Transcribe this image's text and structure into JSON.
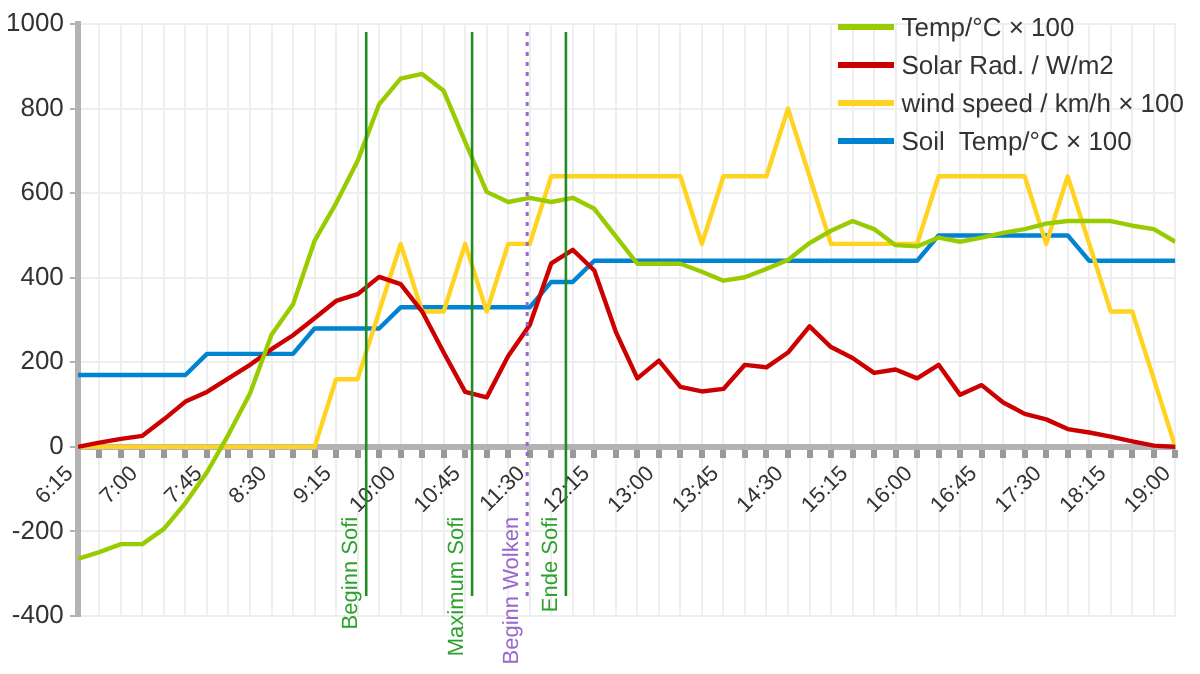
{
  "chart_data": {
    "type": "line",
    "x": [
      6.25,
      6.5,
      6.75,
      7,
      7.25,
      7.5,
      7.75,
      8,
      8.25,
      8.5,
      8.75,
      9,
      9.25,
      9.5,
      9.75,
      10,
      10.25,
      10.5,
      10.75,
      11,
      11.25,
      11.5,
      11.75,
      12,
      12.25,
      12.5,
      12.75,
      13,
      13.25,
      13.5,
      13.75,
      14,
      14.25,
      14.5,
      14.75,
      15,
      15.25,
      15.5,
      15.75,
      16,
      16.25,
      16.5,
      16.75,
      17,
      17.25,
      17.5,
      17.75,
      18,
      18.25,
      18.5,
      18.75,
      19
    ],
    "series": [
      {
        "name": "Temp/°C × 100",
        "color": "#99cc00",
        "values": [
          -265,
          -249,
          -230,
          -230,
          -194,
          -133,
          -60,
          29,
          126,
          265,
          337,
          487,
          576,
          676,
          810,
          871,
          882,
          842,
          721,
          603,
          579,
          589,
          579,
          589,
          563,
          498,
          433,
          433,
          433,
          414,
          393,
          401,
          421,
          442,
          482,
          511,
          534,
          515,
          477,
          474,
          495,
          485,
          495,
          506,
          515,
          528,
          534,
          534,
          534,
          523,
          515,
          485
        ]
      },
      {
        "name": "Solar Rad. / W/m2",
        "color": "#cc0000",
        "values": [
          0,
          10,
          19,
          26,
          65,
          107,
          130,
          162,
          194,
          231,
          264,
          304,
          345,
          361,
          402,
          385,
          320,
          223,
          130,
          117,
          215,
          288,
          434,
          466,
          417,
          272,
          162,
          204,
          142,
          131,
          137,
          194,
          188,
          223,
          285,
          236,
          210,
          175,
          183,
          162,
          194,
          123,
          146,
          105,
          78,
          65,
          42,
          34,
          24,
          13,
          3,
          0
        ]
      },
      {
        "name": "wind speed / km/h × 100",
        "color": "#ffd320",
        "values": [
          0,
          0,
          0,
          0,
          0,
          0,
          0,
          0,
          0,
          0,
          0,
          0,
          160,
          160,
          320,
          480,
          320,
          320,
          480,
          320,
          480,
          480,
          640,
          640,
          640,
          640,
          640,
          640,
          640,
          480,
          640,
          640,
          640,
          800,
          640,
          480,
          480,
          480,
          480,
          480,
          640,
          640,
          640,
          640,
          640,
          480,
          640,
          480,
          320,
          320,
          160,
          0
        ]
      },
      {
        "name": "Soil  Temp/°C × 100",
        "color": "#0084d1",
        "values": [
          170,
          170,
          170,
          170,
          170,
          170,
          220,
          220,
          220,
          220,
          220,
          280,
          280,
          280,
          280,
          330,
          330,
          330,
          330,
          330,
          330,
          330,
          390,
          390,
          440,
          440,
          440,
          440,
          440,
          440,
          440,
          440,
          440,
          440,
          440,
          440,
          440,
          440,
          440,
          440,
          500,
          500,
          500,
          500,
          500,
          500,
          500,
          440,
          440,
          440,
          440,
          440
        ]
      }
    ],
    "xlim": [
      6.25,
      19
    ],
    "xticks": [
      {
        "value": 6.25,
        "label": "6:15"
      },
      {
        "value": 6.5,
        "label": null
      },
      {
        "value": 6.75,
        "label": null
      },
      {
        "value": 7,
        "label": "7:00"
      },
      {
        "value": 7.25,
        "label": null
      },
      {
        "value": 7.5,
        "label": null
      },
      {
        "value": 7.75,
        "label": "7:45"
      },
      {
        "value": 8,
        "label": null
      },
      {
        "value": 8.25,
        "label": null
      },
      {
        "value": 8.5,
        "label": "8:30"
      },
      {
        "value": 8.75,
        "label": null
      },
      {
        "value": 9,
        "label": null
      },
      {
        "value": 9.25,
        "label": "9:15"
      },
      {
        "value": 9.5,
        "label": null
      },
      {
        "value": 9.75,
        "label": null
      },
      {
        "value": 10,
        "label": "10:00"
      },
      {
        "value": 10.25,
        "label": null
      },
      {
        "value": 10.5,
        "label": null
      },
      {
        "value": 10.75,
        "label": "10:45"
      },
      {
        "value": 11,
        "label": null
      },
      {
        "value": 11.25,
        "label": null
      },
      {
        "value": 11.5,
        "label": "11:30"
      },
      {
        "value": 11.75,
        "label": null
      },
      {
        "value": 12,
        "label": null
      },
      {
        "value": 12.25,
        "label": "12:15"
      },
      {
        "value": 12.5,
        "label": null
      },
      {
        "value": 12.75,
        "label": null
      },
      {
        "value": 13,
        "label": "13:00"
      },
      {
        "value": 13.25,
        "label": null
      },
      {
        "value": 13.5,
        "label": null
      },
      {
        "value": 13.75,
        "label": "13:45"
      },
      {
        "value": 14,
        "label": null
      },
      {
        "value": 14.25,
        "label": null
      },
      {
        "value": 14.5,
        "label": "14:30"
      },
      {
        "value": 14.75,
        "label": null
      },
      {
        "value": 15,
        "label": null
      },
      {
        "value": 15.25,
        "label": "15:15"
      },
      {
        "value": 15.5,
        "label": null
      },
      {
        "value": 15.75,
        "label": null
      },
      {
        "value": 16,
        "label": "16:00"
      },
      {
        "value": 16.25,
        "label": null
      },
      {
        "value": 16.5,
        "label": null
      },
      {
        "value": 16.75,
        "label": "16:45"
      },
      {
        "value": 17,
        "label": null
      },
      {
        "value": 17.25,
        "label": null
      },
      {
        "value": 17.5,
        "label": "17:30"
      },
      {
        "value": 17.75,
        "label": null
      },
      {
        "value": 18,
        "label": null
      },
      {
        "value": 18.25,
        "label": "18:15"
      },
      {
        "value": 18.5,
        "label": null
      },
      {
        "value": 18.75,
        "label": null
      },
      {
        "value": 19,
        "label": "19:00"
      }
    ],
    "ylim": [
      -400,
      1000
    ],
    "yticks": [
      -400,
      -200,
      0,
      200,
      400,
      600,
      800,
      1000
    ],
    "grid": true,
    "legend": "top right",
    "marker": "none",
    "line_style": "solid",
    "ref_lines": [
      {
        "axis": "x",
        "value": 9.6,
        "label": "Beginn Sofi",
        "color": "#228b22"
      },
      {
        "axis": "x",
        "value": 10.83,
        "label": "Maximum Sofi",
        "color": "#228b22"
      },
      {
        "axis": "x",
        "value": 11.47,
        "label": "Beginn Wolken",
        "color": "#9966cc",
        "line_style": "dotted"
      },
      {
        "axis": "x",
        "value": 11.92,
        "label": "Ende Sofi",
        "color": "#228b22"
      }
    ]
  }
}
